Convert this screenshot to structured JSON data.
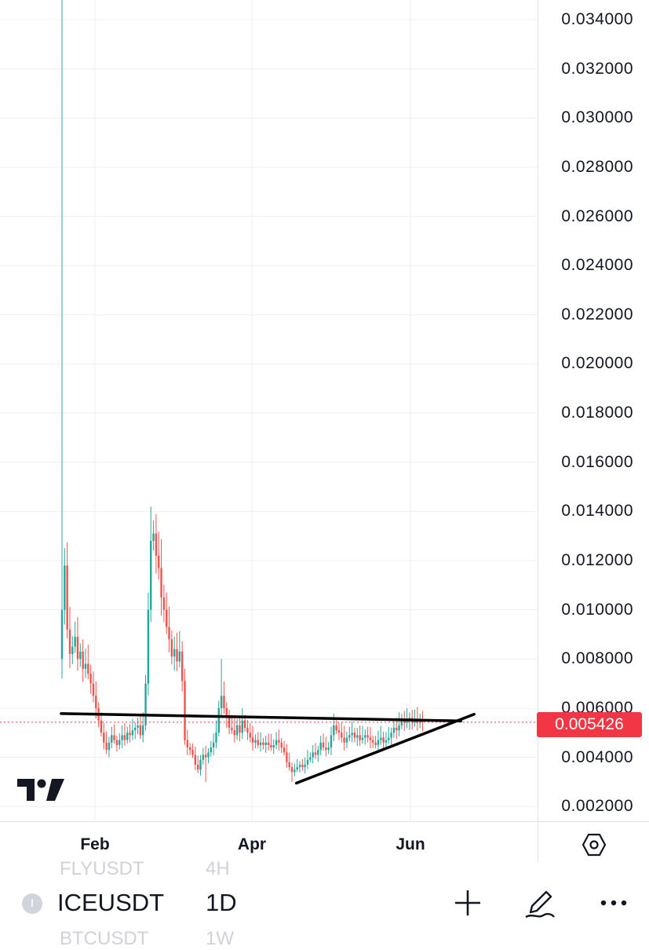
{
  "symbol": {
    "name": "ICEUSDT",
    "interval": "1D",
    "icon_letter": "I"
  },
  "ghost_rows": {
    "above": {
      "name": "FLYUSDT",
      "interval": "4H"
    },
    "below": {
      "name": "BTCUSDT",
      "interval": "1W"
    }
  },
  "last_price": {
    "label": "0.005426",
    "value": 0.005426,
    "color": "#f23645"
  },
  "colors": {
    "up": "#26a69a",
    "down": "#ef5350",
    "grid": "#eeeff3",
    "trendline": "#000000"
  },
  "chart_data": {
    "type": "candlestick",
    "title": "",
    "xlabel": "",
    "ylabel": "",
    "x_ticks": [
      "Feb",
      "Apr",
      "Jun"
    ],
    "y_ticks": [
      "0.034000",
      "0.032000",
      "0.030000",
      "0.028000",
      "0.026000",
      "0.024000",
      "0.022000",
      "0.020000",
      "0.018000",
      "0.016000",
      "0.014000",
      "0.012000",
      "0.010000",
      "0.008000",
      "0.006000",
      "0.004000",
      "0.002000"
    ],
    "ylim": [
      0.0014,
      0.0348
    ],
    "grid": true,
    "series": [
      {
        "close": [
          0.01,
          0.0118,
          0.0092,
          0.0082,
          0.0085,
          0.0089,
          0.008,
          0.0083,
          0.0076,
          0.0078,
          0.0074,
          0.007,
          0.0065,
          0.006,
          0.0055,
          0.005,
          0.0046,
          0.0043,
          0.0046,
          0.0049,
          0.0047,
          0.0045,
          0.0047,
          0.0049,
          0.0047,
          0.005,
          0.0049,
          0.0051,
          0.0052,
          0.0053,
          0.0049,
          0.0053,
          0.007,
          0.01,
          0.0128,
          0.0131,
          0.0122,
          0.0117,
          0.0105,
          0.01,
          0.0093,
          0.0088,
          0.0081,
          0.0084,
          0.0079,
          0.0083,
          0.0071,
          0.0047,
          0.0044,
          0.0043,
          0.0041,
          0.0037,
          0.0035,
          0.0039,
          0.0041,
          0.004,
          0.0042,
          0.0044,
          0.0046,
          0.005,
          0.006,
          0.0065,
          0.006,
          0.0056,
          0.0052,
          0.0051,
          0.0049,
          0.0053,
          0.005,
          0.0055,
          0.0052,
          0.005,
          0.0048,
          0.0046,
          0.0047,
          0.0045,
          0.0046,
          0.0045,
          0.0046,
          0.0045,
          0.0044,
          0.0045,
          0.0047,
          0.0046,
          0.0044,
          0.0042,
          0.0038,
          0.0036,
          0.0034,
          0.0035,
          0.0036,
          0.0037,
          0.0036,
          0.0037,
          0.0039,
          0.004,
          0.0042,
          0.0041,
          0.0043,
          0.0046,
          0.0044,
          0.0043,
          0.0044,
          0.0049,
          0.0053,
          0.0051,
          0.005,
          0.0048,
          0.0046,
          0.0048,
          0.0049,
          0.005,
          0.0048,
          0.0049,
          0.0047,
          0.0048,
          0.0049,
          0.0048,
          0.0047,
          0.0046,
          0.0045,
          0.0047,
          0.0048,
          0.0046,
          0.0047,
          0.0048,
          0.005,
          0.0052,
          0.0051,
          0.0053,
          0.0055,
          0.0054,
          0.0055,
          0.0056,
          0.0054,
          0.0055,
          0.0054,
          0.0055,
          0.00543
        ]
      }
    ],
    "trendlines": [
      {
        "from": {
          "date": "2024-01-19",
          "price": 0.00578
        },
        "to": {
          "date": "2024-06-20",
          "price": 0.00548
        }
      },
      {
        "from": {
          "date": "2024-04-18",
          "price": 0.00295
        },
        "to": {
          "date": "2024-06-25",
          "price": 0.00575
        }
      }
    ]
  }
}
